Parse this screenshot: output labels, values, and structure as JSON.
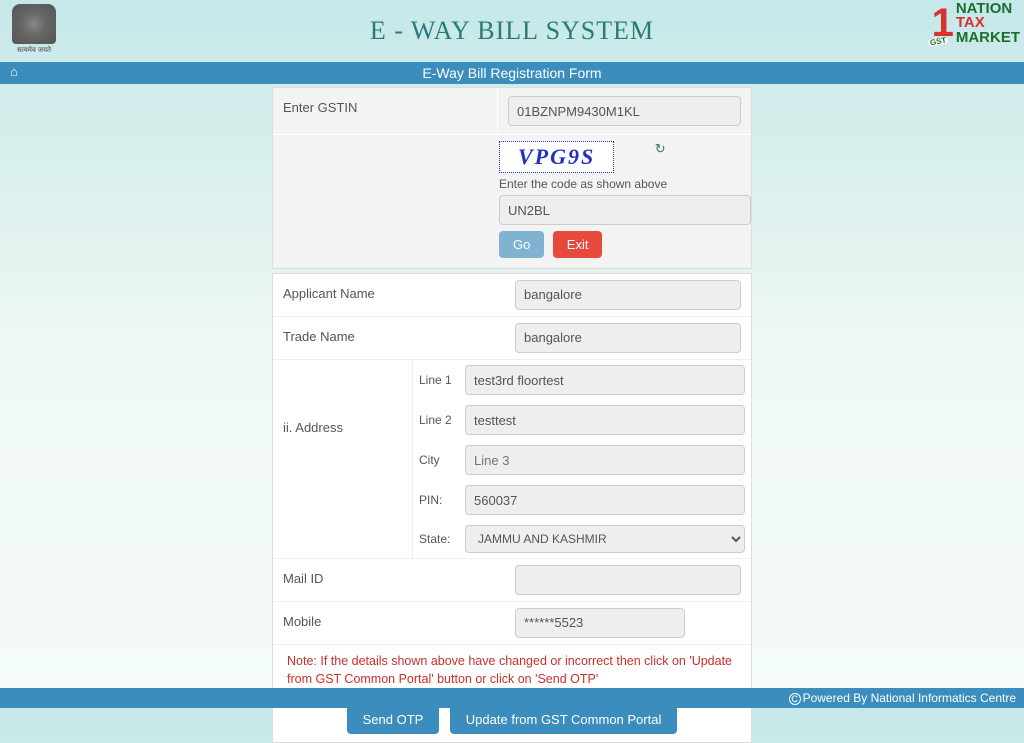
{
  "header": {
    "title": "E - WAY BILL SYSTEM",
    "emblem_caption": "सत्यमेव जयते",
    "logo": {
      "one": "1",
      "gst": "GST",
      "nation": "NATION",
      "tax": "TAX",
      "market": "MARKET"
    }
  },
  "bluebar": {
    "title": "E-Way Bill Registration Form",
    "home_glyph": "⌂"
  },
  "gstin": {
    "label": "Enter GSTIN",
    "value": "01BZNPM9430M1KL"
  },
  "captcha": {
    "text": "VPG9S",
    "refresh_glyph": "↻",
    "hint": "Enter the code as shown above",
    "input_value": "UN2BL",
    "go_label": "Go",
    "exit_label": "Exit"
  },
  "applicant": {
    "label": "Applicant Name",
    "value": "bangalore"
  },
  "trade": {
    "label": "Trade Name",
    "value": "bangalore"
  },
  "address": {
    "section_label": "ii. Address",
    "line1_label": "Line 1",
    "line1_value": "test3rd floortest",
    "line2_label": "Line 2",
    "line2_value": "testtest",
    "city_label": "City",
    "city_placeholder": "Line 3",
    "pin_label": "PIN:",
    "pin_value": "560037",
    "state_label": "State:",
    "state_value": "JAMMU AND KASHMIR"
  },
  "mail": {
    "label": "Mail ID",
    "value": ""
  },
  "mobile": {
    "label": "Mobile",
    "value": "******5523"
  },
  "note": "Note: If the details shown above have changed or incorrect then click on 'Update from GST Common Portal' button or click on 'Send OTP'",
  "actions": {
    "send_otp": "Send OTP",
    "update": "Update from GST Common Portal"
  },
  "footer": {
    "text": "Powered By National Informatics Centre"
  }
}
